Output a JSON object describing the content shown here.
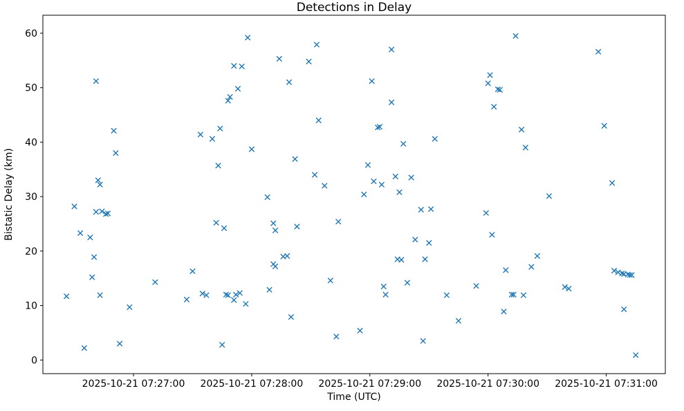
{
  "chart_data": {
    "type": "scatter",
    "title": "Detections in Delay",
    "xlabel": "Time (UTC)",
    "ylabel": "Bistatic Delay (km)",
    "marker": "x",
    "marker_color": "#1f77b4",
    "grid": false,
    "legend": false,
    "x_encoding": "seconds after 2025-10-21 07:26:00 (read from x tick labels)",
    "xlim": [
      14,
      330
    ],
    "ylim": [
      -2.5,
      63.3
    ],
    "x_ticks": [
      {
        "value": 60,
        "label": "2025-10-21 07:27:00"
      },
      {
        "value": 120,
        "label": "2025-10-21 07:28:00"
      },
      {
        "value": 180,
        "label": "2025-10-21 07:29:00"
      },
      {
        "value": 240,
        "label": "2025-10-21 07:30:00"
      },
      {
        "value": 300,
        "label": "2025-10-21 07:31:00"
      }
    ],
    "y_ticks": [
      {
        "value": 0,
        "label": "0"
      },
      {
        "value": 10,
        "label": "10"
      },
      {
        "value": 20,
        "label": "20"
      },
      {
        "value": 30,
        "label": "30"
      },
      {
        "value": 40,
        "label": "40"
      },
      {
        "value": 50,
        "label": "50"
      },
      {
        "value": 60,
        "label": "60"
      }
    ],
    "points": [
      [
        26,
        11.7
      ],
      [
        30,
        28.2
      ],
      [
        33,
        23.3
      ],
      [
        35,
        2.2
      ],
      [
        38,
        22.5
      ],
      [
        39,
        15.2
      ],
      [
        40,
        18.9
      ],
      [
        41,
        51.2
      ],
      [
        41,
        27.2
      ],
      [
        42,
        33.0
      ],
      [
        43,
        32.2
      ],
      [
        43,
        11.9
      ],
      [
        44,
        27.3
      ],
      [
        46,
        26.8
      ],
      [
        47,
        26.9
      ],
      [
        50,
        42.1
      ],
      [
        51,
        38.0
      ],
      [
        53,
        3.0
      ],
      [
        58,
        9.7
      ],
      [
        71,
        14.3
      ],
      [
        87,
        11.1
      ],
      [
        90,
        16.3
      ],
      [
        94,
        41.4
      ],
      [
        95,
        12.2
      ],
      [
        97,
        11.9
      ],
      [
        100,
        40.6
      ],
      [
        102,
        25.2
      ],
      [
        103,
        35.7
      ],
      [
        104,
        42.5
      ],
      [
        105,
        2.8
      ],
      [
        106,
        24.2
      ],
      [
        107,
        12.0
      ],
      [
        108,
        11.9
      ],
      [
        108,
        47.6
      ],
      [
        109,
        48.3
      ],
      [
        111,
        54.0
      ],
      [
        111,
        11.0
      ],
      [
        112,
        12.0
      ],
      [
        113,
        49.8
      ],
      [
        114,
        12.3
      ],
      [
        115,
        53.9
      ],
      [
        117,
        10.3
      ],
      [
        118,
        59.2
      ],
      [
        120,
        38.7
      ],
      [
        128,
        29.9
      ],
      [
        129,
        12.9
      ],
      [
        131,
        17.6
      ],
      [
        132,
        17.2
      ],
      [
        131,
        25.1
      ],
      [
        132,
        23.8
      ],
      [
        134,
        55.3
      ],
      [
        136,
        19.0
      ],
      [
        138,
        19.1
      ],
      [
        139,
        51.0
      ],
      [
        140,
        7.9
      ],
      [
        142,
        36.9
      ],
      [
        143,
        24.5
      ],
      [
        149,
        54.8
      ],
      [
        152,
        34.0
      ],
      [
        153,
        57.9
      ],
      [
        154,
        44.0
      ],
      [
        157,
        32.0
      ],
      [
        160,
        14.6
      ],
      [
        163,
        4.3
      ],
      [
        164,
        25.4
      ],
      [
        175,
        5.4
      ],
      [
        177,
        30.4
      ],
      [
        179,
        35.8
      ],
      [
        181,
        51.2
      ],
      [
        182,
        32.8
      ],
      [
        184,
        42.7
      ],
      [
        185,
        42.8
      ],
      [
        186,
        32.2
      ],
      [
        187,
        13.5
      ],
      [
        188,
        12.0
      ],
      [
        191,
        57.0
      ],
      [
        191,
        47.3
      ],
      [
        193,
        33.7
      ],
      [
        194,
        18.5
      ],
      [
        195,
        30.8
      ],
      [
        196,
        18.4
      ],
      [
        197,
        39.7
      ],
      [
        199,
        14.2
      ],
      [
        201,
        33.5
      ],
      [
        203,
        22.1
      ],
      [
        206,
        27.6
      ],
      [
        207,
        3.5
      ],
      [
        208,
        18.5
      ],
      [
        210,
        21.5
      ],
      [
        211,
        27.7
      ],
      [
        213,
        40.6
      ],
      [
        219,
        11.9
      ],
      [
        225,
        7.2
      ],
      [
        234,
        13.6
      ],
      [
        239,
        27.0
      ],
      [
        240,
        50.8
      ],
      [
        241,
        52.3
      ],
      [
        242,
        23.0
      ],
      [
        243,
        46.5
      ],
      [
        245,
        49.7
      ],
      [
        246,
        49.6
      ],
      [
        248,
        8.9
      ],
      [
        249,
        16.5
      ],
      [
        252,
        12.0
      ],
      [
        253,
        12.0
      ],
      [
        254,
        59.5
      ],
      [
        257,
        42.3
      ],
      [
        258,
        11.9
      ],
      [
        259,
        39.0
      ],
      [
        262,
        17.1
      ],
      [
        265,
        19.1
      ],
      [
        271,
        30.1
      ],
      [
        279,
        13.4
      ],
      [
        281,
        13.1
      ],
      [
        296,
        56.6
      ],
      [
        299,
        43.0
      ],
      [
        303,
        32.5
      ],
      [
        304,
        16.4
      ],
      [
        306,
        16.1
      ],
      [
        308,
        15.9
      ],
      [
        309,
        9.3
      ],
      [
        309,
        15.8
      ],
      [
        311,
        15.7
      ],
      [
        312,
        15.6
      ],
      [
        313,
        15.6
      ],
      [
        315,
        0.9
      ]
    ]
  }
}
